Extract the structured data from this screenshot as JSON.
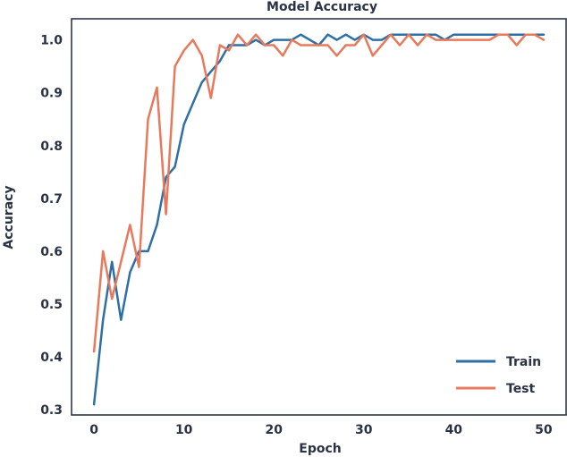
{
  "chart_data": {
    "type": "line",
    "title": "Model Accuracy",
    "xlabel": "Epoch",
    "ylabel": "Accuracy",
    "xlim": [
      -2.5,
      52.5
    ],
    "ylim": [
      0.29,
      1.04
    ],
    "xticks": [
      0,
      10,
      20,
      30,
      40,
      50
    ],
    "yticks": [
      0.3,
      0.4,
      0.5,
      0.6,
      0.7,
      0.8,
      0.9,
      1.0
    ],
    "ytick_labels": [
      "0.3",
      "0.4",
      "0.5",
      "0.6",
      "0.7",
      "0.8",
      "0.9",
      "1.0"
    ],
    "grid": false,
    "legend_position": "lower-right",
    "x": [
      0,
      1,
      2,
      3,
      4,
      5,
      6,
      7,
      8,
      9,
      10,
      11,
      12,
      13,
      14,
      15,
      16,
      17,
      18,
      19,
      20,
      21,
      22,
      23,
      24,
      25,
      26,
      27,
      28,
      29,
      30,
      31,
      32,
      33,
      34,
      35,
      36,
      37,
      38,
      39,
      40,
      41,
      42,
      43,
      44,
      45,
      46,
      47,
      48,
      49,
      50
    ],
    "series": [
      {
        "name": "Train",
        "color": "#2e6fa6",
        "values": [
          0.31,
          0.47,
          0.58,
          0.47,
          0.56,
          0.6,
          0.6,
          0.65,
          0.74,
          0.76,
          0.84,
          0.88,
          0.92,
          0.94,
          0.96,
          0.99,
          0.99,
          0.99,
          1.0,
          0.99,
          1.0,
          1.0,
          1.0,
          1.01,
          1.0,
          0.99,
          1.01,
          1.0,
          1.01,
          1.0,
          1.01,
          1.0,
          1.0,
          1.01,
          1.01,
          1.01,
          1.01,
          1.01,
          1.01,
          1.0,
          1.01,
          1.01,
          1.01,
          1.01,
          1.01,
          1.01,
          1.01,
          1.01,
          1.01,
          1.01,
          1.01
        ]
      },
      {
        "name": "Test",
        "color": "#e8795c",
        "values": [
          0.41,
          0.6,
          0.51,
          0.58,
          0.65,
          0.57,
          0.85,
          0.91,
          0.67,
          0.95,
          0.98,
          1.0,
          0.97,
          0.89,
          0.99,
          0.98,
          1.01,
          0.99,
          1.01,
          0.99,
          0.99,
          0.97,
          1.0,
          0.99,
          0.99,
          0.99,
          0.99,
          0.97,
          0.99,
          0.99,
          1.01,
          0.97,
          0.99,
          1.01,
          0.99,
          1.01,
          0.99,
          1.01,
          1.0,
          1.0,
          1.0,
          1.0,
          1.0,
          1.0,
          1.0,
          1.01,
          1.01,
          0.99,
          1.01,
          1.01,
          1.0
        ]
      }
    ]
  }
}
